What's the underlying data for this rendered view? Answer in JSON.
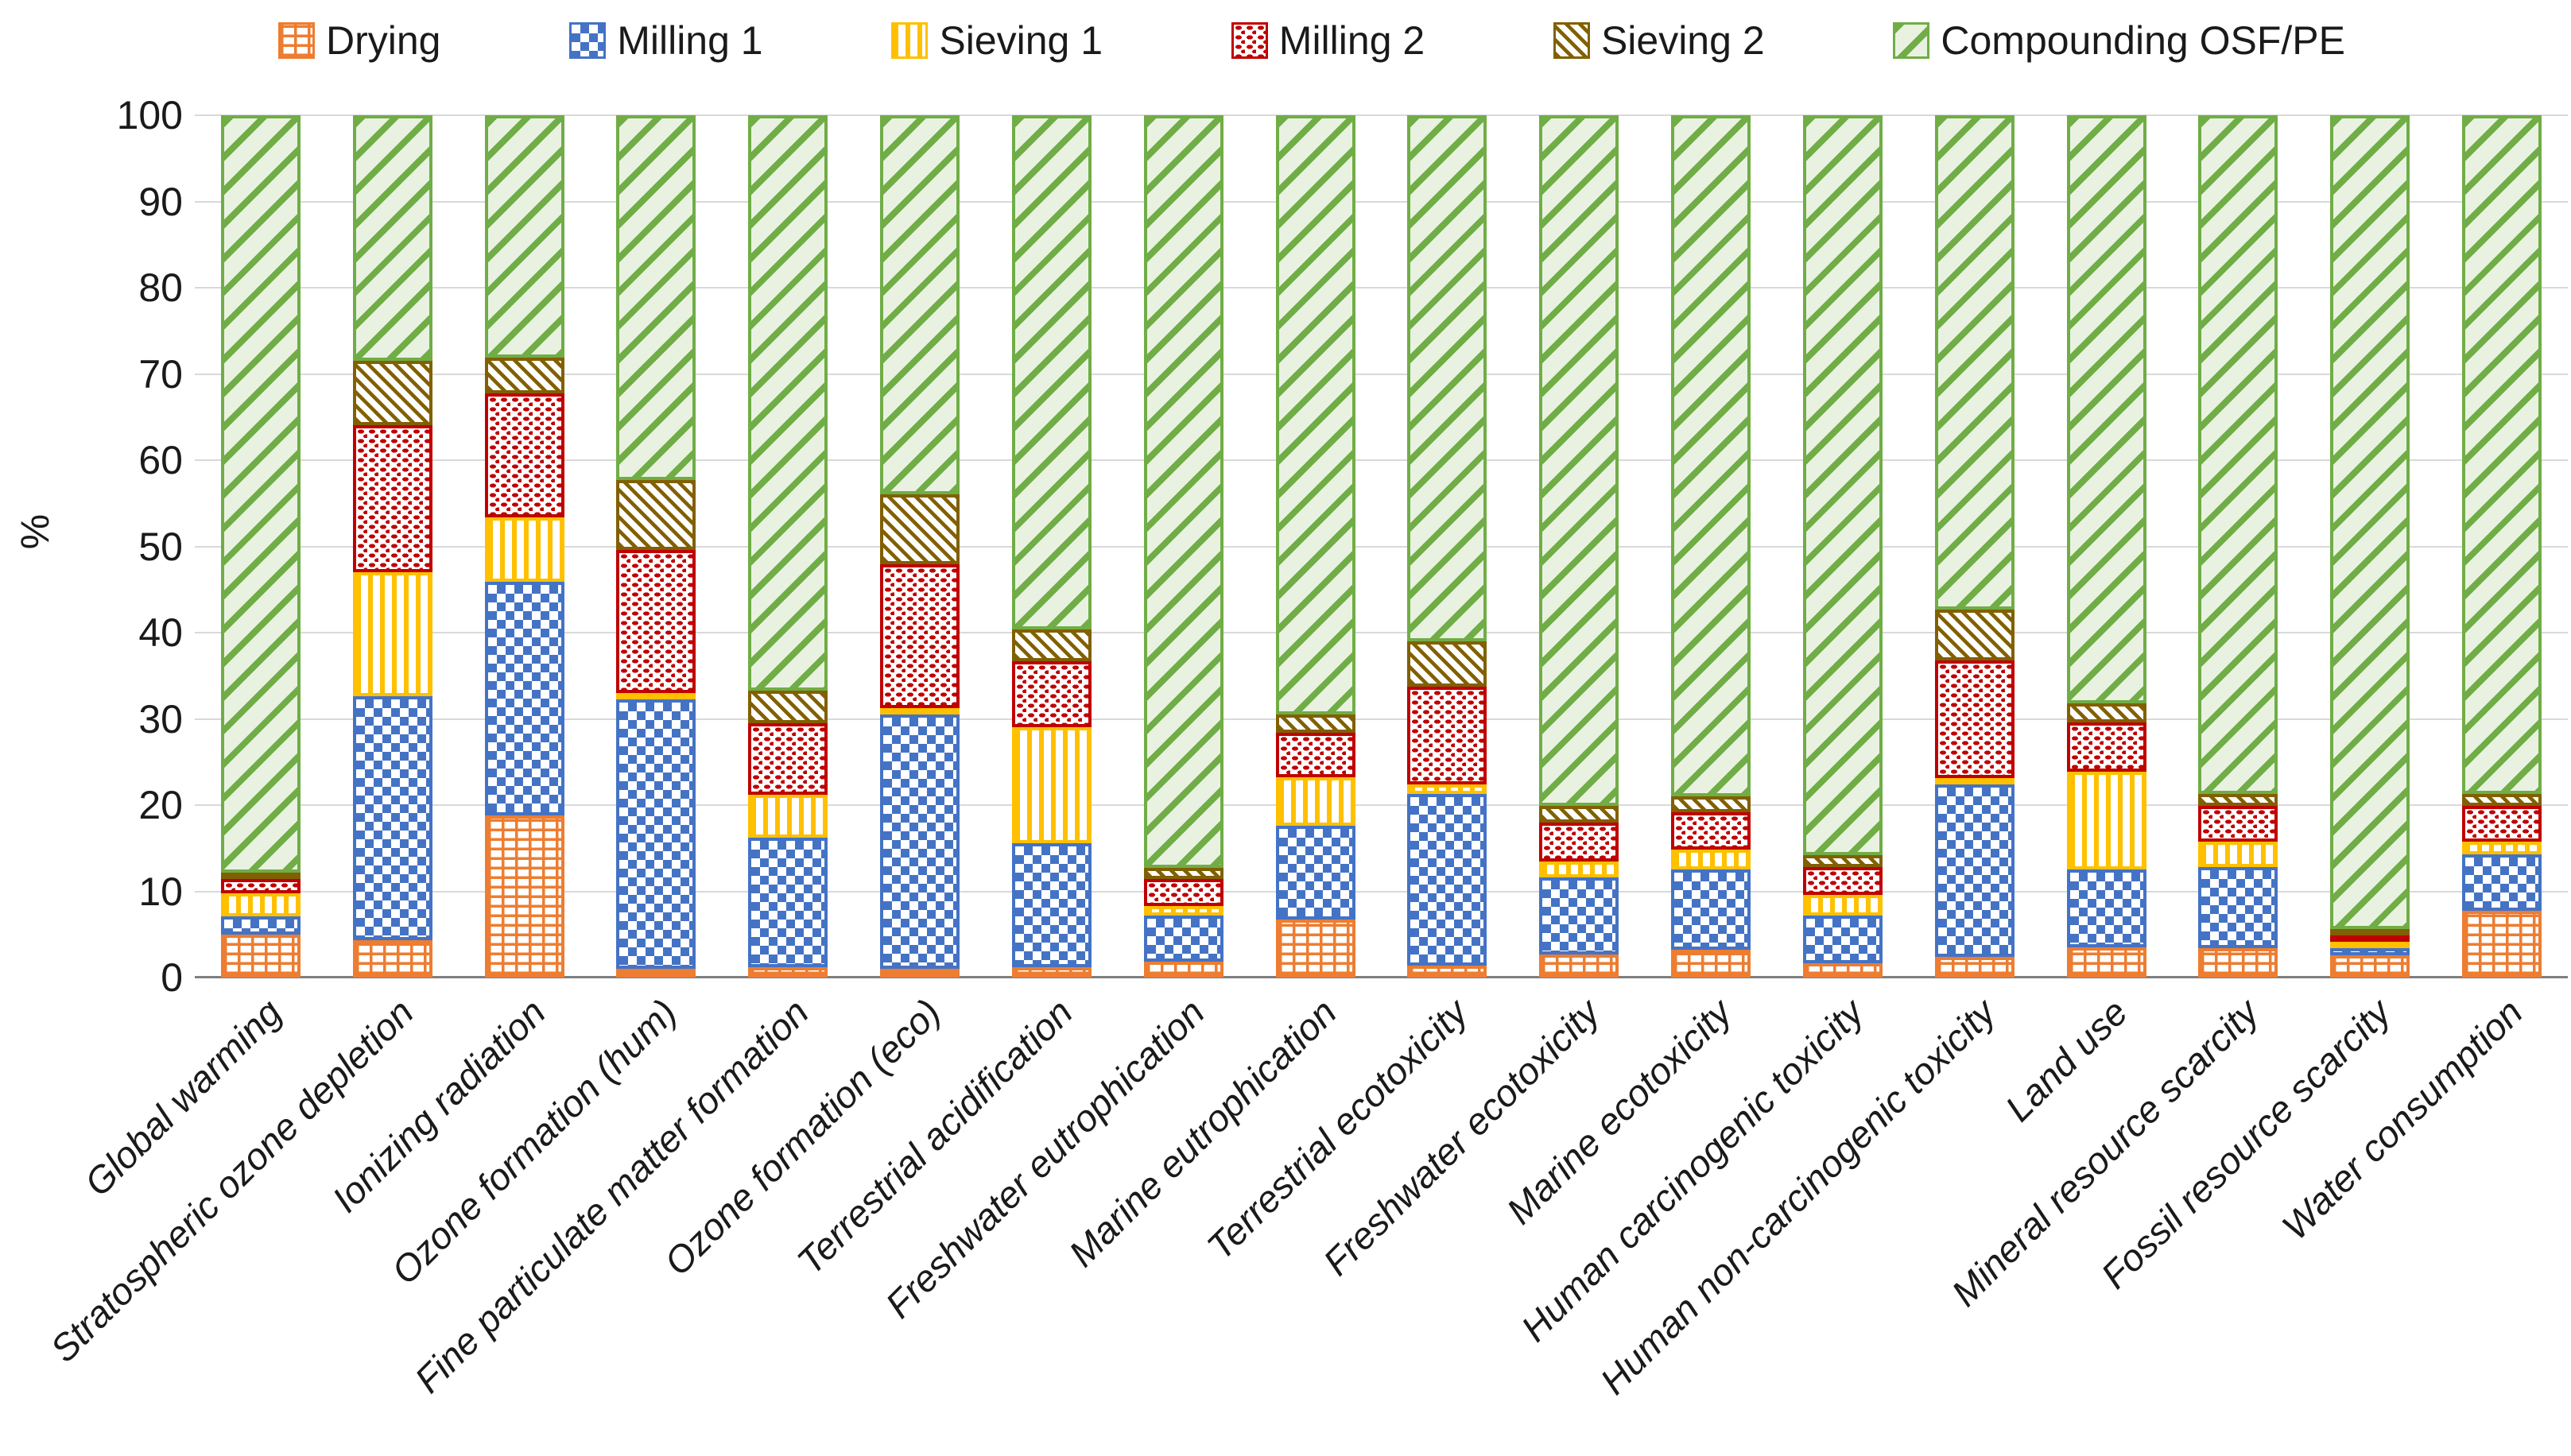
{
  "chart_data": {
    "type": "bar",
    "stacked": true,
    "unit": "percent",
    "ylabel": "%",
    "ylim": [
      0,
      100
    ],
    "ytick_step": 10,
    "yticks": [
      "0",
      "10",
      "20",
      "30",
      "40",
      "50",
      "60",
      "70",
      "80",
      "90",
      "100"
    ],
    "grid": true,
    "legend_position": "top",
    "categories": [
      "Global warming",
      "Stratospheric ozone depletion",
      "Ionizing radiation",
      "Ozone formation (hum)",
      "Fine particulate matter formation",
      "Ozone formation (eco)",
      "Terrestrial acidification",
      "Freshwater eutrophication",
      "Marine eutrophication",
      "Terrestrial ecotoxicity",
      "Freshwater ecotoxicity",
      "Marine ecotoxicity",
      "Human carcinogenic toxicity",
      "Human non-carcinogenic toxicity",
      "Land use",
      "Mineral resource scarcity",
      "Fossil resource scarcity",
      "Water consumption"
    ],
    "series": [
      {
        "name": "Drying",
        "color": "#ED7D31",
        "pattern": "brick",
        "values": [
          5.0,
          4.3,
          18.8,
          1.0,
          1.2,
          1.0,
          1.2,
          1.8,
          6.7,
          1.4,
          2.7,
          3.2,
          1.7,
          2.4,
          3.5,
          3.4,
          2.6,
          7.7
        ]
      },
      {
        "name": "Milling 1",
        "color": "#4472C4",
        "pattern": "checker",
        "values": [
          2.1,
          28.3,
          27.1,
          31.3,
          15.0,
          29.6,
          14.4,
          5.4,
          10.9,
          19.9,
          8.9,
          9.3,
          5.5,
          20.0,
          9.0,
          9.4,
          0.8,
          6.6
        ]
      },
      {
        "name": "Sieving 1",
        "color": "#FFC000",
        "pattern": "vlines",
        "values": [
          2.7,
          14.4,
          7.5,
          0.5,
          5.0,
          0.5,
          13.4,
          1.1,
          5.6,
          1.1,
          1.9,
          2.3,
          2.4,
          0.6,
          11.4,
          3.0,
          0.4,
          1.5
        ]
      },
      {
        "name": "Milling 2",
        "color": "#C00000",
        "pattern": "dots",
        "values": [
          1.7,
          17.1,
          14.3,
          16.7,
          8.3,
          16.7,
          7.7,
          3.1,
          5.2,
          11.3,
          4.5,
          4.4,
          3.2,
          13.7,
          5.7,
          4.1,
          0.4,
          4.1
        ]
      },
      {
        "name": "Sieving 2",
        "color": "#806000",
        "pattern": "diagdown",
        "values": [
          0.3,
          7.4,
          4.2,
          8.1,
          3.8,
          8.1,
          3.7,
          1.3,
          2.1,
          5.3,
          1.9,
          1.8,
          1.4,
          5.9,
          2.2,
          1.4,
          0.2,
          1.4
        ]
      },
      {
        "name": "Compounding OSF/PE",
        "color": "#70AD47",
        "pattern": "diagup",
        "values": [
          88.2,
          28.5,
          28.1,
          42.4,
          66.7,
          44.1,
          59.6,
          87.3,
          69.5,
          61.0,
          80.1,
          79.0,
          85.8,
          57.4,
          68.2,
          78.7,
          95.6,
          78.7
        ]
      }
    ]
  }
}
